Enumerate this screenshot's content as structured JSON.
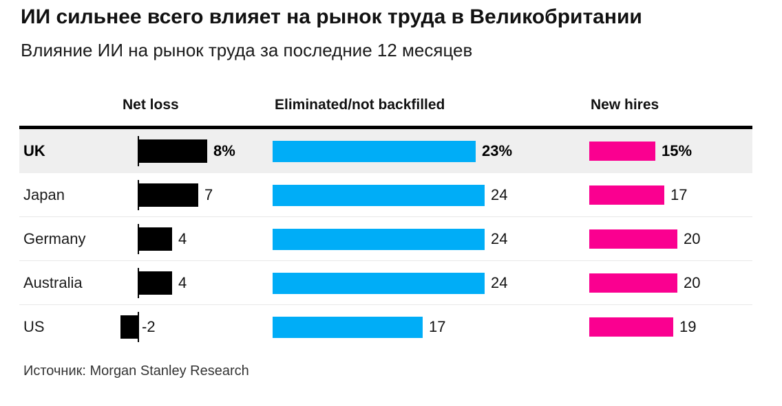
{
  "page": {
    "title": "ИИ сильнее всего влияет на рынок труда в Великобритании",
    "subtitle": "Влияние ИИ на рынок труда за последние 12 месяцев",
    "source": "Источник: Morgan Stanley Research"
  },
  "colors": {
    "net_loss_bar": "#000000",
    "eliminated_bar": "#00ADF7",
    "new_hires_bar": "#FA0090",
    "highlight_row_bg": "#EFEFEF",
    "divider_line": "#E8E8E8",
    "header_rule": "#000000"
  },
  "chart_data": {
    "type": "bar",
    "orientation": "horizontal",
    "title": "ИИ сильнее всего влияет на рынок труда в Великобритании",
    "subtitle": "Влияние ИИ на рынок труда за последние 12 месяцев",
    "source": "Источник: Morgan Stanley Research",
    "columns": [
      "Net loss",
      "Eliminated/not backfilled",
      "New hires"
    ],
    "categories": [
      "UK",
      "Japan",
      "Germany",
      "Australia",
      "US"
    ],
    "highlighted_category": "UK",
    "unit": "%",
    "series": [
      {
        "name": "Net loss",
        "color": "#000000",
        "values": [
          8,
          7,
          4,
          4,
          -2
        ],
        "labels": [
          "8%",
          "7",
          "4",
          "4",
          "-2"
        ]
      },
      {
        "name": "Eliminated/not backfilled",
        "color": "#00ADF7",
        "values": [
          23,
          24,
          24,
          24,
          17
        ],
        "labels": [
          "23%",
          "24",
          "24",
          "24",
          "17"
        ]
      },
      {
        "name": "New hires",
        "color": "#FA0090",
        "values": [
          15,
          17,
          20,
          20,
          19
        ],
        "labels": [
          "15%",
          "17",
          "20",
          "20",
          "19"
        ]
      }
    ]
  }
}
